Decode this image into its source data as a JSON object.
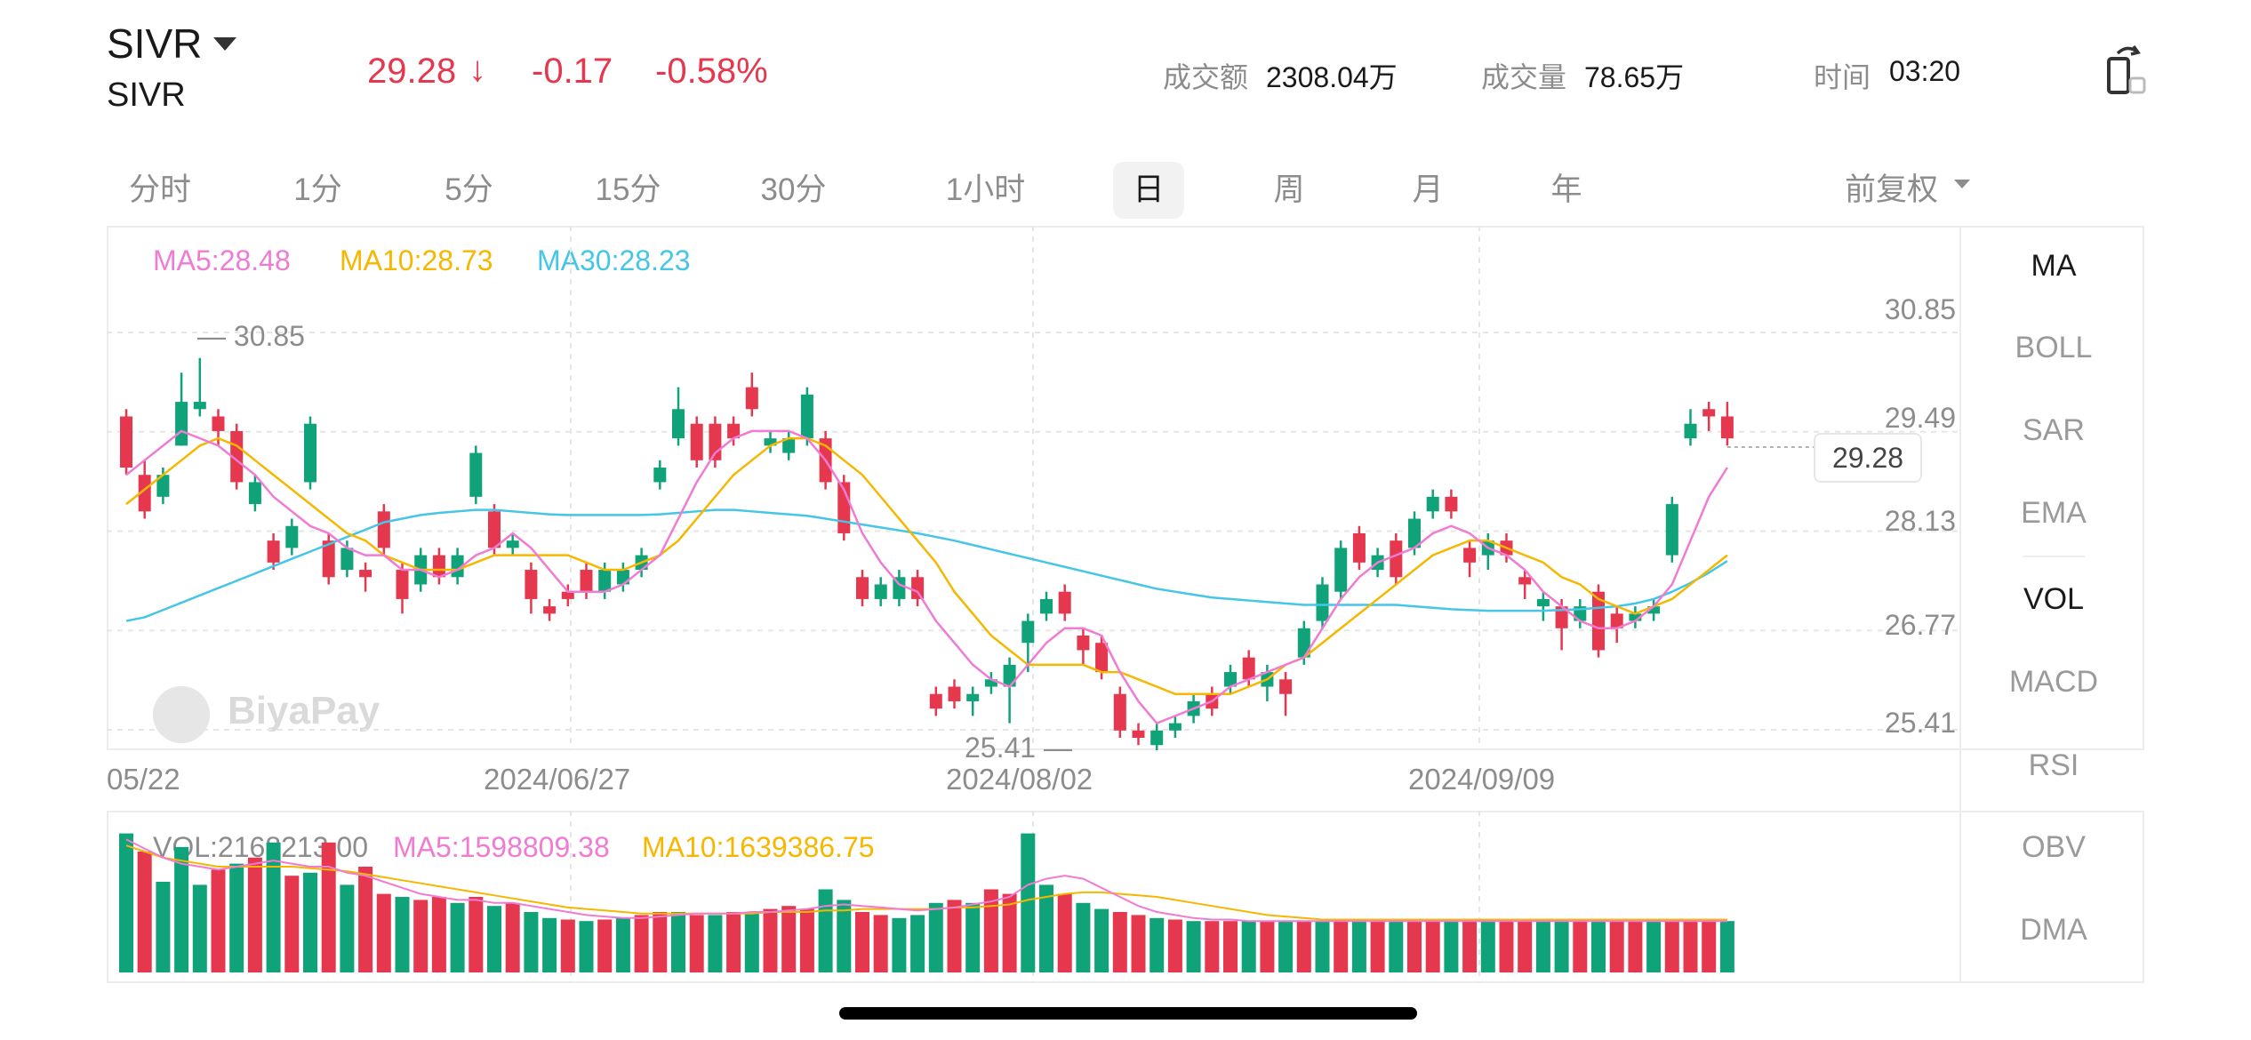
{
  "header": {
    "symbol": "SIVR",
    "symbol_sub": "SIVR",
    "price": "29.28",
    "price_direction_icon": "arrow-down-icon",
    "change": "-0.17",
    "change_pct": "-0.58%",
    "turnover_label": "成交额",
    "turnover_value": "2308.04万",
    "volume_label": "成交量",
    "volume_value": "78.65万",
    "time_label": "时间",
    "time_value": "03:20",
    "rotate_icon": "rotate-screen-icon",
    "colors": {
      "up": "#e5384f",
      "down": "#10a37a"
    }
  },
  "tabs": [
    {
      "label": "分时"
    },
    {
      "label": "1分"
    },
    {
      "label": "5分"
    },
    {
      "label": "15分"
    },
    {
      "label": "30分"
    },
    {
      "label": "1小时"
    },
    {
      "label": "日",
      "active": true
    },
    {
      "label": "周"
    },
    {
      "label": "月"
    },
    {
      "label": "年"
    }
  ],
  "adjust_label": "前复权",
  "main_legend": {
    "ma5": "MA5:28.48",
    "ma10": "MA10:28.73",
    "ma30": "MA30:28.23"
  },
  "vol_legend": {
    "vol": "VOL:2168213.00",
    "ma5": "MA5:1598809.38",
    "ma10": "MA10:1639386.75"
  },
  "watermark": "BiyaPay",
  "indicators": [
    "MA",
    "BOLL",
    "SAR",
    "EMA",
    "VOL",
    "MACD",
    "RSI",
    "OBV",
    "DMA"
  ],
  "active_indicators": [
    "MA",
    "VOL"
  ],
  "chart_data": {
    "type": "candlestick",
    "y_axis_labels": [
      "30.85",
      "29.49",
      "28.13",
      "26.77",
      "25.41"
    ],
    "ylim": [
      25.41,
      30.85
    ],
    "x_axis_labels": [
      "05/22",
      "2024/06/27",
      "2024/08/02",
      "2024/09/09"
    ],
    "high_marker": "30.85",
    "low_marker": "25.41",
    "current_price": "29.28",
    "candles": [
      [
        29.7,
        29.0,
        29.8,
        28.9
      ],
      [
        28.9,
        28.4,
        29.1,
        28.3
      ],
      [
        28.6,
        28.9,
        29.0,
        28.5
      ],
      [
        29.3,
        29.9,
        30.3,
        29.3
      ],
      [
        29.8,
        29.9,
        30.5,
        29.7
      ],
      [
        29.7,
        29.5,
        29.8,
        29.3
      ],
      [
        29.5,
        28.8,
        29.6,
        28.7
      ],
      [
        28.5,
        28.8,
        28.9,
        28.4
      ],
      [
        28.0,
        27.7,
        28.1,
        27.6
      ],
      [
        27.9,
        28.2,
        28.3,
        27.8
      ],
      [
        28.8,
        29.6,
        29.7,
        28.7
      ],
      [
        28.0,
        27.5,
        28.1,
        27.4
      ],
      [
        27.6,
        27.9,
        28.0,
        27.5
      ],
      [
        27.6,
        27.5,
        27.7,
        27.3
      ],
      [
        28.4,
        27.9,
        28.5,
        27.8
      ],
      [
        27.6,
        27.2,
        27.7,
        27.0
      ],
      [
        27.4,
        27.8,
        27.9,
        27.3
      ],
      [
        27.8,
        27.5,
        27.9,
        27.4
      ],
      [
        27.5,
        27.8,
        27.9,
        27.4
      ],
      [
        28.6,
        29.2,
        29.3,
        28.5
      ],
      [
        28.4,
        27.9,
        28.5,
        27.8
      ],
      [
        27.9,
        28.0,
        28.1,
        27.8
      ],
      [
        27.6,
        27.2,
        27.7,
        27.0
      ],
      [
        27.1,
        27.0,
        27.2,
        26.9
      ],
      [
        27.3,
        27.2,
        27.4,
        27.1
      ],
      [
        27.6,
        27.3,
        27.7,
        27.2
      ],
      [
        27.3,
        27.6,
        27.7,
        27.2
      ],
      [
        27.4,
        27.6,
        27.7,
        27.3
      ],
      [
        27.6,
        27.8,
        27.9,
        27.5
      ],
      [
        28.8,
        29.0,
        29.1,
        28.7
      ],
      [
        29.4,
        29.8,
        30.1,
        29.3
      ],
      [
        29.6,
        29.1,
        29.7,
        29.0
      ],
      [
        29.6,
        29.1,
        29.7,
        29.0
      ],
      [
        29.6,
        29.4,
        29.7,
        29.3
      ],
      [
        30.1,
        29.8,
        30.3,
        29.7
      ],
      [
        29.3,
        29.4,
        29.5,
        29.2
      ],
      [
        29.2,
        29.4,
        29.5,
        29.1
      ],
      [
        29.4,
        30.0,
        30.1,
        29.3
      ],
      [
        29.4,
        28.8,
        29.5,
        28.7
      ],
      [
        28.8,
        28.1,
        28.9,
        28.0
      ],
      [
        27.5,
        27.2,
        27.6,
        27.1
      ],
      [
        27.2,
        27.4,
        27.5,
        27.1
      ],
      [
        27.2,
        27.5,
        27.6,
        27.1
      ],
      [
        27.5,
        27.2,
        27.6,
        27.1
      ],
      [
        25.9,
        25.7,
        26.0,
        25.6
      ],
      [
        26.0,
        25.8,
        26.1,
        25.7
      ],
      [
        25.8,
        25.9,
        26.0,
        25.6
      ],
      [
        26.0,
        26.1,
        26.2,
        25.9
      ],
      [
        26.0,
        26.3,
        26.4,
        25.5
      ],
      [
        26.6,
        26.9,
        27.0,
        26.2
      ],
      [
        27.0,
        27.2,
        27.3,
        26.9
      ],
      [
        27.3,
        27.0,
        27.4,
        26.9
      ],
      [
        26.7,
        26.5,
        26.8,
        26.3
      ],
      [
        26.6,
        26.2,
        26.7,
        26.1
      ],
      [
        25.9,
        25.4,
        26.0,
        25.3
      ],
      [
        25.4,
        25.3,
        25.5,
        25.2
      ],
      [
        25.2,
        25.4,
        25.5,
        25.1
      ],
      [
        25.4,
        25.5,
        25.6,
        25.3
      ],
      [
        25.6,
        25.8,
        25.9,
        25.5
      ],
      [
        25.9,
        25.7,
        26.0,
        25.6
      ],
      [
        26.0,
        26.2,
        26.3,
        25.9
      ],
      [
        26.4,
        26.1,
        26.5,
        26.0
      ],
      [
        26.0,
        26.2,
        26.3,
        25.8
      ],
      [
        26.1,
        25.9,
        26.2,
        25.6
      ],
      [
        26.4,
        26.8,
        26.9,
        26.3
      ],
      [
        26.9,
        27.4,
        27.5,
        26.8
      ],
      [
        27.3,
        27.9,
        28.0,
        27.2
      ],
      [
        28.1,
        27.7,
        28.2,
        27.6
      ],
      [
        27.6,
        27.8,
        27.9,
        27.5
      ],
      [
        28.0,
        27.5,
        28.1,
        27.4
      ],
      [
        27.9,
        28.3,
        28.4,
        27.8
      ],
      [
        28.4,
        28.6,
        28.7,
        28.3
      ],
      [
        28.6,
        28.4,
        28.7,
        28.3
      ],
      [
        27.9,
        27.7,
        28.0,
        27.5
      ],
      [
        27.8,
        28.0,
        28.1,
        27.6
      ],
      [
        28.0,
        27.8,
        28.1,
        27.7
      ],
      [
        27.5,
        27.4,
        27.6,
        27.2
      ],
      [
        27.1,
        27.2,
        27.3,
        26.9
      ],
      [
        27.1,
        26.8,
        27.2,
        26.5
      ],
      [
        26.9,
        27.1,
        27.2,
        26.8
      ],
      [
        27.3,
        26.5,
        27.4,
        26.4
      ],
      [
        27.0,
        26.8,
        27.1,
        26.6
      ],
      [
        26.9,
        27.0,
        27.1,
        26.8
      ],
      [
        27.0,
        27.1,
        27.2,
        26.9
      ],
      [
        27.8,
        28.5,
        28.6,
        27.7
      ],
      [
        29.4,
        29.6,
        29.8,
        29.3
      ],
      [
        29.8,
        29.7,
        29.9,
        29.5
      ],
      [
        29.7,
        29.4,
        29.9,
        29.3
      ]
    ],
    "ma5": [
      28.9,
      29.1,
      29.3,
      29.5,
      29.4,
      29.3,
      29.1,
      28.9,
      28.6,
      28.4,
      28.2,
      28.1,
      27.9,
      27.8,
      27.8,
      27.6,
      27.6,
      27.5,
      27.6,
      27.8,
      27.9,
      28.1,
      27.9,
      27.6,
      27.3,
      27.3,
      27.3,
      27.4,
      27.6,
      27.8,
      28.3,
      28.8,
      29.2,
      29.4,
      29.5,
      29.5,
      29.5,
      29.4,
      29.1,
      28.7,
      28.1,
      27.7,
      27.4,
      27.3,
      26.9,
      26.6,
      26.3,
      26.1,
      26.0,
      26.3,
      26.6,
      26.8,
      26.8,
      26.7,
      26.2,
      25.8,
      25.5,
      25.6,
      25.7,
      25.8,
      26.0,
      26.1,
      26.2,
      26.3,
      26.4,
      26.8,
      27.2,
      27.5,
      27.7,
      27.8,
      27.9,
      28.1,
      28.2,
      28.1,
      27.9,
      27.8,
      27.6,
      27.3,
      27.1,
      26.9,
      26.8,
      26.8,
      26.9,
      27.1,
      27.4,
      28.0,
      28.6,
      29.0
    ],
    "ma10": [
      28.5,
      28.7,
      28.9,
      29.1,
      29.3,
      29.4,
      29.3,
      29.1,
      28.9,
      28.7,
      28.5,
      28.3,
      28.1,
      28.0,
      27.8,
      27.7,
      27.6,
      27.6,
      27.6,
      27.7,
      27.8,
      27.8,
      27.8,
      27.8,
      27.8,
      27.7,
      27.6,
      27.6,
      27.7,
      27.8,
      28.0,
      28.3,
      28.6,
      28.9,
      29.1,
      29.3,
      29.4,
      29.4,
      29.3,
      29.1,
      28.9,
      28.6,
      28.3,
      28.0,
      27.7,
      27.3,
      27.0,
      26.7,
      26.5,
      26.3,
      26.3,
      26.3,
      26.3,
      26.2,
      26.2,
      26.1,
      26.0,
      25.9,
      25.9,
      25.9,
      25.9,
      26.0,
      26.1,
      26.3,
      26.4,
      26.6,
      26.8,
      27.0,
      27.2,
      27.4,
      27.6,
      27.8,
      27.9,
      28.0,
      28.0,
      27.9,
      27.8,
      27.7,
      27.5,
      27.4,
      27.2,
      27.1,
      27.0,
      27.1,
      27.2,
      27.4,
      27.6,
      27.8
    ],
    "ma30": [
      26.9,
      26.95,
      27.05,
      27.15,
      27.25,
      27.35,
      27.45,
      27.55,
      27.65,
      27.75,
      27.85,
      27.95,
      28.05,
      28.15,
      28.25,
      28.3,
      28.35,
      28.38,
      28.4,
      28.42,
      28.42,
      28.4,
      28.38,
      28.36,
      28.35,
      28.35,
      28.35,
      28.35,
      28.35,
      28.36,
      28.38,
      28.4,
      28.42,
      28.42,
      28.4,
      28.38,
      28.36,
      28.34,
      28.3,
      28.26,
      28.22,
      28.18,
      28.14,
      28.1,
      28.05,
      28.0,
      27.94,
      27.88,
      27.82,
      27.76,
      27.7,
      27.64,
      27.58,
      27.52,
      27.46,
      27.4,
      27.34,
      27.3,
      27.26,
      27.22,
      27.2,
      27.18,
      27.16,
      27.14,
      27.12,
      27.12,
      27.12,
      27.12,
      27.12,
      27.12,
      27.1,
      27.08,
      27.06,
      27.05,
      27.04,
      27.04,
      27.04,
      27.04,
      27.05,
      27.06,
      27.08,
      27.1,
      27.14,
      27.2,
      27.3,
      27.42,
      27.56,
      27.72
    ],
    "volume": [
      92,
      80,
      60,
      83,
      58,
      68,
      72,
      76,
      86,
      64,
      66,
      86,
      58,
      70,
      52,
      50,
      48,
      50,
      46,
      50,
      44,
      46,
      40,
      36,
      35,
      34,
      35,
      36,
      38,
      40,
      40,
      38,
      38,
      40,
      40,
      42,
      44,
      42,
      55,
      48,
      40,
      38,
      36,
      38,
      46,
      48,
      46,
      55,
      52,
      92,
      58,
      52,
      46,
      42,
      40,
      38,
      36,
      35,
      34,
      34,
      34,
      34,
      34,
      34,
      34,
      34,
      34,
      34,
      34,
      34,
      34,
      34,
      34,
      34,
      34,
      34,
      34,
      34,
      34,
      34,
      34,
      34,
      34,
      34,
      34,
      34,
      34,
      34
    ],
    "volume_up": [
      true,
      false,
      true,
      true,
      true,
      false,
      true,
      false,
      true,
      false,
      true,
      false,
      true,
      false,
      false,
      true,
      false,
      false,
      true,
      false,
      true,
      false,
      true,
      true,
      false,
      true,
      false,
      true,
      false,
      false,
      true,
      false,
      true,
      false,
      true,
      false,
      false,
      false,
      true,
      true,
      false,
      false,
      true,
      true,
      true,
      false,
      true,
      false,
      false,
      true,
      true,
      false,
      true,
      true,
      false,
      false,
      true,
      false,
      true,
      false,
      false,
      true,
      false,
      true,
      false,
      true,
      false,
      true,
      false,
      true,
      false,
      false,
      true,
      false,
      true,
      false,
      false,
      true,
      true,
      false,
      true,
      false,
      false,
      true,
      false,
      false,
      false,
      true
    ],
    "vol_ma5": [
      88,
      82,
      76,
      72,
      70,
      68,
      70,
      72,
      74,
      72,
      70,
      70,
      66,
      64,
      60,
      56,
      52,
      50,
      48,
      48,
      46,
      46,
      44,
      42,
      40,
      38,
      37,
      36,
      36,
      37,
      38,
      39,
      39,
      39,
      40,
      40,
      41,
      42,
      44,
      45,
      44,
      43,
      42,
      41,
      42,
      43,
      45,
      47,
      50,
      58,
      62,
      64,
      62,
      56,
      50,
      44,
      40,
      38,
      36,
      35,
      35,
      34,
      34,
      34,
      34,
      34,
      34,
      34,
      34,
      34,
      34,
      34,
      34,
      34,
      34,
      34,
      34,
      34,
      34,
      34,
      34,
      34,
      34,
      34,
      34,
      34,
      34,
      34
    ],
    "vol_ma10": [
      84,
      80,
      76,
      74,
      72,
      70,
      70,
      70,
      70,
      70,
      69,
      68,
      67,
      65,
      63,
      61,
      59,
      57,
      55,
      53,
      51,
      49,
      47,
      45,
      43,
      42,
      41,
      40,
      39,
      39,
      39,
      39,
      39,
      39,
      39,
      40,
      40,
      40,
      41,
      41,
      42,
      42,
      42,
      42,
      42,
      43,
      43,
      44,
      45,
      48,
      50,
      52,
      53,
      53,
      52,
      51,
      50,
      48,
      46,
      44,
      42,
      40,
      38,
      37,
      36,
      35,
      35,
      35,
      35,
      35,
      35,
      35,
      35,
      35,
      35,
      35,
      35,
      35,
      35,
      35,
      35,
      35,
      35,
      35,
      35,
      35,
      35,
      35
    ]
  }
}
